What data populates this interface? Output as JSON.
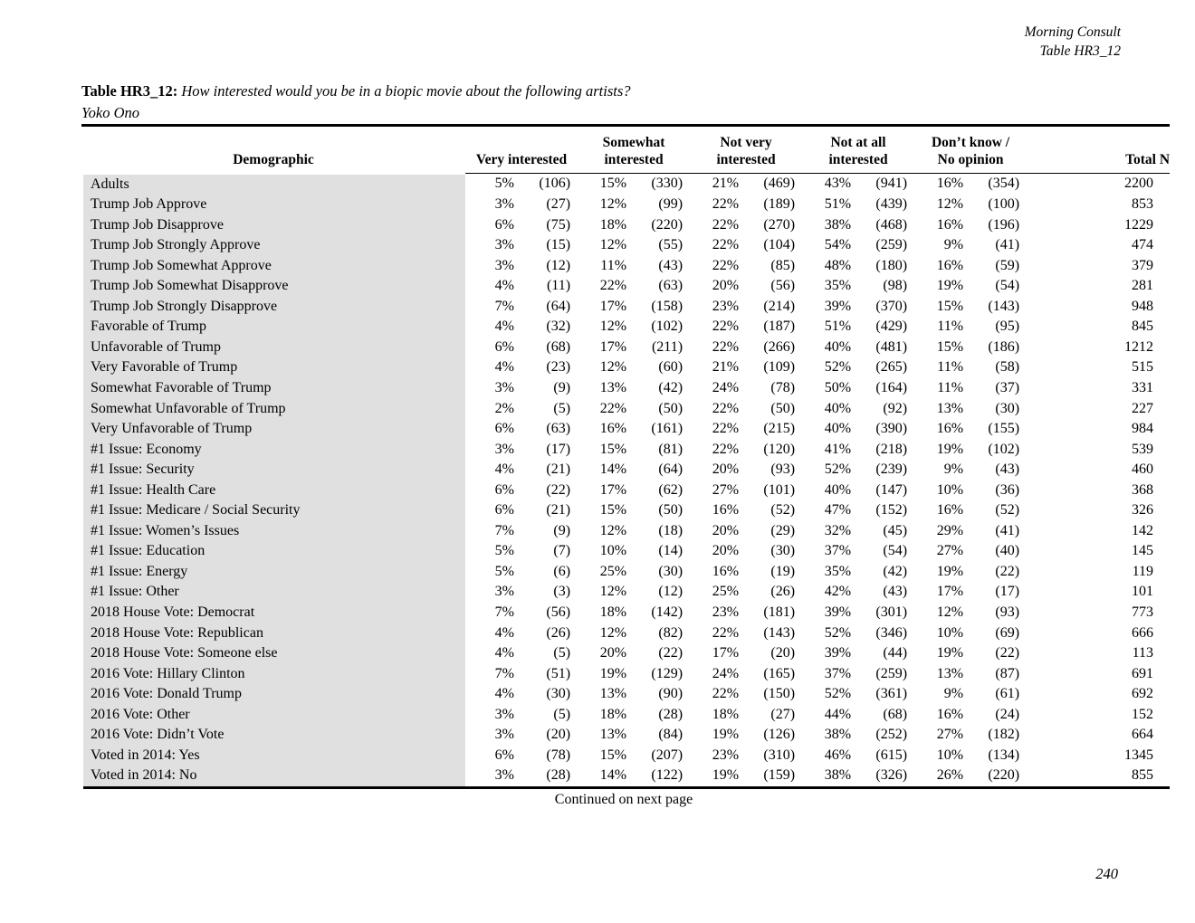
{
  "page": {
    "brand": "Morning Consult",
    "table_ref": "Table HR3_12",
    "title_label": "Table HR3_12:",
    "title_question": "How interested would you be in a biopic movie about the following artists?",
    "title_subject": "Yoko Ono",
    "continued_note": "Continued on next page",
    "page_number": "240"
  },
  "table": {
    "demographic_header": "Demographic",
    "groups": [
      {
        "label": "Very interested",
        "lines": [
          "Very interested"
        ]
      },
      {
        "label": "Somewhat interested",
        "lines": [
          "Somewhat",
          "interested"
        ]
      },
      {
        "label": "Not very interested",
        "lines": [
          "Not very",
          "interested"
        ]
      },
      {
        "label": "Not at all interested",
        "lines": [
          "Not at all",
          "interested"
        ]
      },
      {
        "label": "Don’t know / No opinion",
        "lines": [
          "Don’t know /",
          "No opinion"
        ]
      }
    ],
    "total_header": "Total N",
    "rows": [
      {
        "label": "Adults",
        "values": [
          "5%",
          "(106)",
          "15%",
          "(330)",
          "21%",
          "(469)",
          "43%",
          "(941)",
          "16%",
          "(354)"
        ],
        "total": "2200"
      },
      {
        "label": "Trump Job Approve",
        "values": [
          "3%",
          "(27)",
          "12%",
          "(99)",
          "22%",
          "(189)",
          "51%",
          "(439)",
          "12%",
          "(100)"
        ],
        "total": "853"
      },
      {
        "label": "Trump Job Disapprove",
        "values": [
          "6%",
          "(75)",
          "18%",
          "(220)",
          "22%",
          "(270)",
          "38%",
          "(468)",
          "16%",
          "(196)"
        ],
        "total": "1229"
      },
      {
        "label": "Trump Job Strongly Approve",
        "values": [
          "3%",
          "(15)",
          "12%",
          "(55)",
          "22%",
          "(104)",
          "54%",
          "(259)",
          "9%",
          "(41)"
        ],
        "total": "474"
      },
      {
        "label": "Trump Job Somewhat Approve",
        "values": [
          "3%",
          "(12)",
          "11%",
          "(43)",
          "22%",
          "(85)",
          "48%",
          "(180)",
          "16%",
          "(59)"
        ],
        "total": "379"
      },
      {
        "label": "Trump Job Somewhat Disapprove",
        "values": [
          "4%",
          "(11)",
          "22%",
          "(63)",
          "20%",
          "(56)",
          "35%",
          "(98)",
          "19%",
          "(54)"
        ],
        "total": "281"
      },
      {
        "label": "Trump Job Strongly Disapprove",
        "values": [
          "7%",
          "(64)",
          "17%",
          "(158)",
          "23%",
          "(214)",
          "39%",
          "(370)",
          "15%",
          "(143)"
        ],
        "total": "948"
      },
      {
        "label": "Favorable of Trump",
        "values": [
          "4%",
          "(32)",
          "12%",
          "(102)",
          "22%",
          "(187)",
          "51%",
          "(429)",
          "11%",
          "(95)"
        ],
        "total": "845"
      },
      {
        "label": "Unfavorable of Trump",
        "values": [
          "6%",
          "(68)",
          "17%",
          "(211)",
          "22%",
          "(266)",
          "40%",
          "(481)",
          "15%",
          "(186)"
        ],
        "total": "1212"
      },
      {
        "label": "Very Favorable of Trump",
        "values": [
          "4%",
          "(23)",
          "12%",
          "(60)",
          "21%",
          "(109)",
          "52%",
          "(265)",
          "11%",
          "(58)"
        ],
        "total": "515"
      },
      {
        "label": "Somewhat Favorable of Trump",
        "values": [
          "3%",
          "(9)",
          "13%",
          "(42)",
          "24%",
          "(78)",
          "50%",
          "(164)",
          "11%",
          "(37)"
        ],
        "total": "331"
      },
      {
        "label": "Somewhat Unfavorable of Trump",
        "values": [
          "2%",
          "(5)",
          "22%",
          "(50)",
          "22%",
          "(50)",
          "40%",
          "(92)",
          "13%",
          "(30)"
        ],
        "total": "227"
      },
      {
        "label": "Very Unfavorable of Trump",
        "values": [
          "6%",
          "(63)",
          "16%",
          "(161)",
          "22%",
          "(215)",
          "40%",
          "(390)",
          "16%",
          "(155)"
        ],
        "total": "984"
      },
      {
        "label": "#1 Issue: Economy",
        "values": [
          "3%",
          "(17)",
          "15%",
          "(81)",
          "22%",
          "(120)",
          "41%",
          "(218)",
          "19%",
          "(102)"
        ],
        "total": "539"
      },
      {
        "label": "#1 Issue: Security",
        "values": [
          "4%",
          "(21)",
          "14%",
          "(64)",
          "20%",
          "(93)",
          "52%",
          "(239)",
          "9%",
          "(43)"
        ],
        "total": "460"
      },
      {
        "label": "#1 Issue: Health Care",
        "values": [
          "6%",
          "(22)",
          "17%",
          "(62)",
          "27%",
          "(101)",
          "40%",
          "(147)",
          "10%",
          "(36)"
        ],
        "total": "368"
      },
      {
        "label": "#1 Issue: Medicare / Social Security",
        "values": [
          "6%",
          "(21)",
          "15%",
          "(50)",
          "16%",
          "(52)",
          "47%",
          "(152)",
          "16%",
          "(52)"
        ],
        "total": "326"
      },
      {
        "label": "#1 Issue: Women’s Issues",
        "values": [
          "7%",
          "(9)",
          "12%",
          "(18)",
          "20%",
          "(29)",
          "32%",
          "(45)",
          "29%",
          "(41)"
        ],
        "total": "142"
      },
      {
        "label": "#1 Issue: Education",
        "values": [
          "5%",
          "(7)",
          "10%",
          "(14)",
          "20%",
          "(30)",
          "37%",
          "(54)",
          "27%",
          "(40)"
        ],
        "total": "145"
      },
      {
        "label": "#1 Issue: Energy",
        "values": [
          "5%",
          "(6)",
          "25%",
          "(30)",
          "16%",
          "(19)",
          "35%",
          "(42)",
          "19%",
          "(22)"
        ],
        "total": "119"
      },
      {
        "label": "#1 Issue: Other",
        "values": [
          "3%",
          "(3)",
          "12%",
          "(12)",
          "25%",
          "(26)",
          "42%",
          "(43)",
          "17%",
          "(17)"
        ],
        "total": "101"
      },
      {
        "label": "2018 House Vote: Democrat",
        "values": [
          "7%",
          "(56)",
          "18%",
          "(142)",
          "23%",
          "(181)",
          "39%",
          "(301)",
          "12%",
          "(93)"
        ],
        "total": "773"
      },
      {
        "label": "2018 House Vote: Republican",
        "values": [
          "4%",
          "(26)",
          "12%",
          "(82)",
          "22%",
          "(143)",
          "52%",
          "(346)",
          "10%",
          "(69)"
        ],
        "total": "666"
      },
      {
        "label": "2018 House Vote: Someone else",
        "values": [
          "4%",
          "(5)",
          "20%",
          "(22)",
          "17%",
          "(20)",
          "39%",
          "(44)",
          "19%",
          "(22)"
        ],
        "total": "113"
      },
      {
        "label": "2016 Vote: Hillary Clinton",
        "values": [
          "7%",
          "(51)",
          "19%",
          "(129)",
          "24%",
          "(165)",
          "37%",
          "(259)",
          "13%",
          "(87)"
        ],
        "total": "691"
      },
      {
        "label": "2016 Vote: Donald Trump",
        "values": [
          "4%",
          "(30)",
          "13%",
          "(90)",
          "22%",
          "(150)",
          "52%",
          "(361)",
          "9%",
          "(61)"
        ],
        "total": "692"
      },
      {
        "label": "2016 Vote: Other",
        "values": [
          "3%",
          "(5)",
          "18%",
          "(28)",
          "18%",
          "(27)",
          "44%",
          "(68)",
          "16%",
          "(24)"
        ],
        "total": "152"
      },
      {
        "label": "2016 Vote: Didn’t Vote",
        "values": [
          "3%",
          "(20)",
          "13%",
          "(84)",
          "19%",
          "(126)",
          "38%",
          "(252)",
          "27%",
          "(182)"
        ],
        "total": "664"
      },
      {
        "label": "Voted in 2014: Yes",
        "values": [
          "6%",
          "(78)",
          "15%",
          "(207)",
          "23%",
          "(310)",
          "46%",
          "(615)",
          "10%",
          "(134)"
        ],
        "total": "1345"
      },
      {
        "label": "Voted in 2014: No",
        "values": [
          "3%",
          "(28)",
          "14%",
          "(122)",
          "19%",
          "(159)",
          "38%",
          "(326)",
          "26%",
          "(220)"
        ],
        "total": "855"
      }
    ]
  }
}
